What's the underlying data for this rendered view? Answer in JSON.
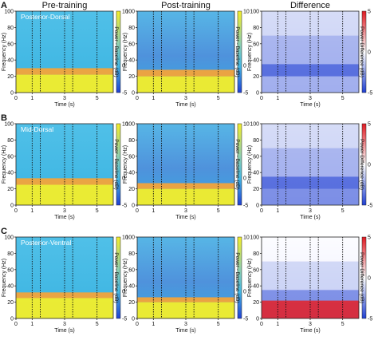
{
  "figure": {
    "column_titles": [
      "Pre-training",
      "Post-training",
      "Difference"
    ],
    "row_letters": [
      "A",
      "B",
      "C"
    ],
    "region_labels": [
      "Posterior-Dorsal",
      "Mid-Dorsal",
      "Posterior-Ventral"
    ],
    "ylabel": "Frequency (Hz)",
    "xlabel": "Time (s)",
    "power_colorbar_label": "Power - Baseline (dB)",
    "diff_colorbar_label": "Power Difference (dB)",
    "colors": {
      "yellow": "#f3ee2a",
      "orange": "#f3a33a",
      "cyan": "#46b9e3",
      "blue": "#1f3fd2",
      "red": "#e01a22",
      "white": "#ffffff"
    }
  },
  "chart_data": [
    {
      "type": "heatmap",
      "title": "Pre-training",
      "region": "Posterior-Dorsal",
      "x": {
        "label": "Time (s)",
        "range": [
          0,
          6
        ],
        "ticks": [
          0,
          1,
          3,
          5
        ]
      },
      "y": {
        "label": "Frequency (Hz)",
        "range": [
          0,
          100
        ],
        "ticks": [
          0,
          20,
          40,
          60,
          80,
          100
        ]
      },
      "colorbar": {
        "label": "Power - Baseline (dB)",
        "range": [
          -5,
          10
        ],
        "ticks": [
          10,
          0,
          -5
        ],
        "colormap": "blue-cyan-yellow"
      },
      "event_lines_s": [
        1,
        1.5,
        3,
        3.5,
        5
      ],
      "bands": [
        {
          "freq_range_hz": [
            0,
            22
          ],
          "value_db": 10
        },
        {
          "freq_range_hz": [
            22,
            30
          ],
          "value_db": 6
        },
        {
          "freq_range_hz": [
            30,
            100
          ],
          "value_db": 2
        }
      ]
    },
    {
      "type": "heatmap",
      "title": "Post-training",
      "region": "Posterior-Dorsal",
      "x": {
        "label": "Time (s)",
        "range": [
          0,
          6
        ],
        "ticks": [
          0,
          1,
          3,
          5
        ]
      },
      "y": {
        "label": "Frequency (Hz)",
        "range": [
          0,
          100
        ],
        "ticks": [
          0,
          20,
          40,
          60,
          80,
          100
        ]
      },
      "colorbar": {
        "label": "Power - Baseline (dB)",
        "range": [
          -5,
          10
        ],
        "ticks": [
          10,
          0,
          -5
        ],
        "colormap": "blue-cyan-yellow"
      },
      "event_lines_s": [
        1,
        1.5,
        3,
        3.5,
        5
      ],
      "bands": [
        {
          "freq_range_hz": [
            0,
            20
          ],
          "value_db": 10
        },
        {
          "freq_range_hz": [
            20,
            28
          ],
          "value_db": 6
        },
        {
          "freq_range_hz": [
            28,
            100
          ],
          "value_db": 0
        }
      ]
    },
    {
      "type": "heatmap",
      "title": "Difference",
      "region": "Posterior-Dorsal",
      "x": {
        "label": "Time (s)",
        "range": [
          0,
          6
        ],
        "ticks": [
          0,
          1,
          3,
          5
        ]
      },
      "y": {
        "label": "Frequency (Hz)",
        "range": [
          0,
          100
        ],
        "ticks": [
          0,
          20,
          40,
          60,
          80,
          100
        ]
      },
      "colorbar": {
        "label": "Power Difference (dB)",
        "range": [
          -5,
          5
        ],
        "ticks": [
          5,
          0,
          -5
        ],
        "colormap": "blue-white-red"
      },
      "event_lines_s": [
        1,
        1.5,
        3,
        3.5,
        5
      ],
      "bands": [
        {
          "freq_range_hz": [
            0,
            20
          ],
          "value_db": -2
        },
        {
          "freq_range_hz": [
            20,
            35
          ],
          "value_db": -4
        },
        {
          "freq_range_hz": [
            35,
            70
          ],
          "value_db": -2
        },
        {
          "freq_range_hz": [
            70,
            100
          ],
          "value_db": -1
        }
      ]
    },
    {
      "type": "heatmap",
      "title": "Pre-training",
      "region": "Mid-Dorsal",
      "x": {
        "label": "Time (s)",
        "range": [
          0,
          6
        ],
        "ticks": [
          0,
          1,
          3,
          5
        ]
      },
      "y": {
        "label": "Frequency (Hz)",
        "range": [
          0,
          100
        ],
        "ticks": [
          0,
          20,
          40,
          60,
          80,
          100
        ]
      },
      "colorbar": {
        "label": "Power - Baseline (dB)",
        "range": [
          -5,
          10
        ],
        "ticks": [
          10,
          0,
          -5
        ],
        "colormap": "blue-cyan-yellow"
      },
      "event_lines_s": [
        1,
        1.5,
        3,
        3.5,
        5
      ],
      "bands": [
        {
          "freq_range_hz": [
            0,
            25
          ],
          "value_db": 10
        },
        {
          "freq_range_hz": [
            25,
            33
          ],
          "value_db": 6
        },
        {
          "freq_range_hz": [
            33,
            100
          ],
          "value_db": 2
        }
      ]
    },
    {
      "type": "heatmap",
      "title": "Post-training",
      "region": "Mid-Dorsal",
      "x": {
        "label": "Time (s)",
        "range": [
          0,
          6
        ],
        "ticks": [
          0,
          1,
          3,
          5
        ]
      },
      "y": {
        "label": "Frequency (Hz)",
        "range": [
          0,
          100
        ],
        "ticks": [
          0,
          20,
          40,
          60,
          80,
          100
        ]
      },
      "colorbar": {
        "label": "Power - Baseline (dB)",
        "range": [
          -5,
          10
        ],
        "ticks": [
          10,
          0,
          -5
        ],
        "colormap": "blue-cyan-yellow"
      },
      "event_lines_s": [
        1,
        1.5,
        3,
        3.5,
        5
      ],
      "bands": [
        {
          "freq_range_hz": [
            0,
            20
          ],
          "value_db": 10
        },
        {
          "freq_range_hz": [
            20,
            27
          ],
          "value_db": 6
        },
        {
          "freq_range_hz": [
            27,
            100
          ],
          "value_db": 0
        }
      ]
    },
    {
      "type": "heatmap",
      "title": "Difference",
      "region": "Mid-Dorsal",
      "x": {
        "label": "Time (s)",
        "range": [
          0,
          6
        ],
        "ticks": [
          0,
          1,
          3,
          5
        ]
      },
      "y": {
        "label": "Frequency (Hz)",
        "range": [
          0,
          100
        ],
        "ticks": [
          0,
          20,
          40,
          60,
          80,
          100
        ]
      },
      "colorbar": {
        "label": "Power Difference (dB)",
        "range": [
          -5,
          5
        ],
        "ticks": [
          5,
          0,
          -5
        ],
        "colormap": "blue-white-red"
      },
      "event_lines_s": [
        1,
        1.5,
        3,
        3.5,
        5
      ],
      "bands": [
        {
          "freq_range_hz": [
            0,
            20
          ],
          "value_db": -3
        },
        {
          "freq_range_hz": [
            20,
            35
          ],
          "value_db": -4
        },
        {
          "freq_range_hz": [
            35,
            70
          ],
          "value_db": -2
        },
        {
          "freq_range_hz": [
            70,
            100
          ],
          "value_db": -1
        }
      ]
    },
    {
      "type": "heatmap",
      "title": "Pre-training",
      "region": "Posterior-Ventral",
      "x": {
        "label": "Time (s)",
        "range": [
          0,
          6
        ],
        "ticks": [
          0,
          1,
          3,
          5
        ]
      },
      "y": {
        "label": "Frequency (Hz)",
        "range": [
          0,
          100
        ],
        "ticks": [
          0,
          20,
          40,
          60,
          80,
          100
        ]
      },
      "colorbar": {
        "label": "Power - Baseline (dB)",
        "range": [
          -5,
          10
        ],
        "ticks": [
          10,
          0,
          -5
        ],
        "colormap": "blue-cyan-yellow"
      },
      "event_lines_s": [
        1,
        1.5,
        3,
        3.5,
        5
      ],
      "bands": [
        {
          "freq_range_hz": [
            0,
            25
          ],
          "value_db": 10
        },
        {
          "freq_range_hz": [
            25,
            32
          ],
          "value_db": 6
        },
        {
          "freq_range_hz": [
            32,
            100
          ],
          "value_db": 2
        }
      ]
    },
    {
      "type": "heatmap",
      "title": "Post-training",
      "region": "Posterior-Ventral",
      "x": {
        "label": "Time (s)",
        "range": [
          0,
          6
        ],
        "ticks": [
          0,
          1,
          3,
          5
        ]
      },
      "y": {
        "label": "Frequency (Hz)",
        "range": [
          0,
          100
        ],
        "ticks": [
          0,
          20,
          40,
          60,
          80,
          100
        ]
      },
      "colorbar": {
        "label": "Power - Baseline (dB)",
        "range": [
          -5,
          10
        ],
        "ticks": [
          10,
          0,
          -5
        ],
        "colormap": "blue-cyan-yellow"
      },
      "event_lines_s": [
        1,
        1.5,
        3,
        3.5,
        5
      ],
      "bands": [
        {
          "freq_range_hz": [
            0,
            20
          ],
          "value_db": 10
        },
        {
          "freq_range_hz": [
            20,
            26
          ],
          "value_db": 6
        },
        {
          "freq_range_hz": [
            26,
            100
          ],
          "value_db": 0
        }
      ]
    },
    {
      "type": "heatmap",
      "title": "Difference",
      "region": "Posterior-Ventral",
      "x": {
        "label": "Time (s)",
        "range": [
          0,
          6
        ],
        "ticks": [
          0,
          1,
          3,
          5
        ]
      },
      "y": {
        "label": "Frequency (Hz)",
        "range": [
          0,
          100
        ],
        "ticks": [
          0,
          20,
          40,
          60,
          80,
          100
        ]
      },
      "colorbar": {
        "label": "Power Difference (dB)",
        "range": [
          -5,
          5
        ],
        "ticks": [
          5,
          0,
          -5
        ],
        "colormap": "blue-white-red"
      },
      "event_lines_s": [
        1,
        1.5,
        3,
        3.5,
        5
      ],
      "bands": [
        {
          "freq_range_hz": [
            0,
            22
          ],
          "value_db": 5
        },
        {
          "freq_range_hz": [
            22,
            35
          ],
          "value_db": -3
        },
        {
          "freq_range_hz": [
            35,
            70
          ],
          "value_db": -1
        },
        {
          "freq_range_hz": [
            70,
            100
          ],
          "value_db": 0
        }
      ]
    }
  ]
}
